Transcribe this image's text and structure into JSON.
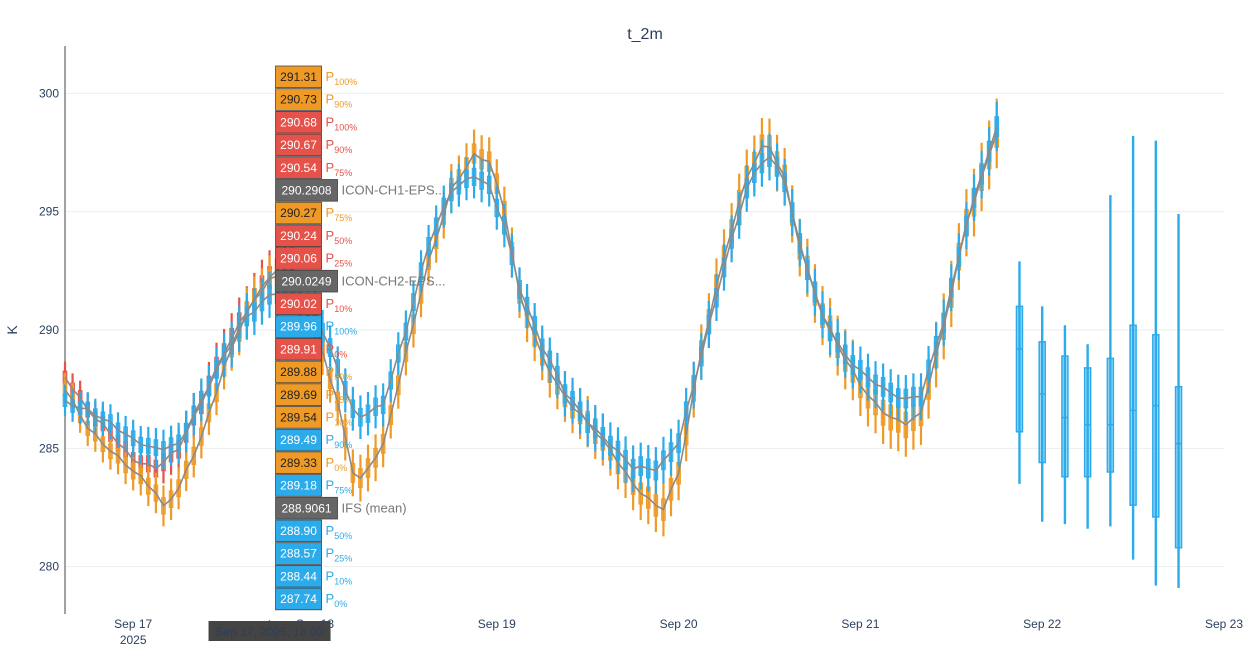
{
  "chart_data": {
    "type": "box",
    "title": "t_2m",
    "ylabel": "K",
    "xlabel": "",
    "ylim": [
      278,
      302
    ],
    "xlim": [
      "2025-09-16 15:00",
      "2025-09-23 00:00"
    ],
    "yticks": [
      280,
      285,
      290,
      295,
      300
    ],
    "xticks": [
      {
        "x": "2025-09-17 00:00",
        "label": "Sep 17",
        "sublabel": "2025"
      },
      {
        "x": "2025-09-18 00:00",
        "label": "Sep 18",
        "sublabel": ""
      },
      {
        "x": "2025-09-19 00:00",
        "label": "Sep 19",
        "sublabel": ""
      },
      {
        "x": "2025-09-20 00:00",
        "label": "Sep 20",
        "sublabel": ""
      },
      {
        "x": "2025-09-21 00:00",
        "label": "Sep 21",
        "sublabel": ""
      },
      {
        "x": "2025-09-22 00:00",
        "label": "Sep 22",
        "sublabel": ""
      },
      {
        "x": "2025-09-23 00:00",
        "label": "Sep 23",
        "sublabel": ""
      }
    ],
    "grid": true,
    "series": [
      {
        "name": "ICON-CH1-EPS",
        "color": "#e5524a",
        "kind": "box",
        "x_start": "2025-09-16 15:00",
        "x_end": "2025-09-17 21:00",
        "step_hours": 1,
        "median": [
          [
            0,
            288.0
          ],
          [
            3,
            286.5
          ],
          [
            9,
            284.6
          ],
          [
            12,
            284.3
          ],
          [
            15,
            285.0
          ],
          [
            18,
            286.8
          ],
          [
            21,
            289.0
          ],
          [
            24,
            290.9
          ],
          [
            27,
            292.4
          ],
          [
            29,
            292.8
          ],
          [
            30,
            292.6
          ],
          [
            31,
            291.8
          ],
          [
            33,
            290.3
          ],
          [
            36,
            286.4
          ]
        ],
        "spread": [
          [
            0,
            1.2
          ],
          [
            12,
            1.6
          ],
          [
            24,
            2.0
          ],
          [
            30,
            2.2
          ],
          [
            36,
            2.2
          ]
        ]
      },
      {
        "name": "ICON-CH2-EPS",
        "color": "#ef9a26",
        "kind": "box",
        "x_start": "2025-09-16 15:00",
        "x_end": "2025-09-21 18:00",
        "step_hours": 1,
        "median": [
          [
            0,
            287.5
          ],
          [
            3,
            286.0
          ],
          [
            9,
            284.0
          ],
          [
            12,
            283.0
          ],
          [
            13,
            282.4
          ],
          [
            15,
            283.3
          ],
          [
            18,
            285.6
          ],
          [
            21,
            288.5
          ],
          [
            24,
            290.7
          ],
          [
            27,
            292.0
          ],
          [
            29,
            292.3
          ],
          [
            30,
            292.1
          ],
          [
            33,
            290.3
          ],
          [
            36,
            287.0
          ],
          [
            38,
            284.0
          ],
          [
            39,
            283.6
          ],
          [
            42,
            285.0
          ],
          [
            45,
            289.0
          ],
          [
            48,
            293.0
          ],
          [
            51,
            296.0
          ],
          [
            54,
            297.3
          ],
          [
            56,
            297.0
          ],
          [
            58,
            295.0
          ],
          [
            60,
            291.5
          ],
          [
            63,
            289.0
          ],
          [
            66,
            287.2
          ],
          [
            69,
            286.0
          ],
          [
            72,
            284.8
          ],
          [
            75,
            283.5
          ],
          [
            78,
            282.7
          ],
          [
            79,
            282.6
          ],
          [
            81,
            284.0
          ],
          [
            84,
            289.0
          ],
          [
            87,
            293.0
          ],
          [
            90,
            296.5
          ],
          [
            92,
            297.8
          ],
          [
            93,
            297.9
          ],
          [
            95,
            296.5
          ],
          [
            97,
            293.5
          ],
          [
            100,
            290.5
          ],
          [
            103,
            288.7
          ],
          [
            106,
            287.3
          ],
          [
            109,
            286.4
          ],
          [
            111,
            286.1
          ],
          [
            113,
            286.4
          ],
          [
            116,
            290.0
          ],
          [
            119,
            294.5
          ],
          [
            122,
            297.5
          ],
          [
            124,
            299.5
          ],
          [
            126,
            300.2
          ],
          [
            128,
            299.0
          ],
          [
            130,
            296.5
          ],
          [
            132,
            293.5
          ],
          [
            135,
            291.0
          ],
          [
            138,
            289.0
          ],
          [
            141,
            287.8
          ],
          [
            144,
            287.0
          ],
          [
            147,
            286.8
          ],
          [
            149,
            288.0
          ],
          [
            152,
            292.0
          ],
          [
            155,
            295.5
          ],
          [
            157,
            297.0
          ],
          [
            159,
            297.5
          ],
          [
            161,
            296.5
          ],
          [
            162,
            295.0
          ],
          [
            163,
            293.0
          ],
          [
            164,
            292.5
          ],
          [
            165,
            292.0
          ]
        ],
        "spread": [
          [
            0,
            1.3
          ],
          [
            24,
            1.8
          ],
          [
            48,
            1.8
          ],
          [
            72,
            2.0
          ],
          [
            96,
            2.2
          ],
          [
            120,
            2.6
          ],
          [
            144,
            3.2
          ],
          [
            156,
            7.0
          ],
          [
            165,
            7.5
          ]
        ]
      },
      {
        "name": "ICON-CH1-EPS",
        "color": "#2cabeb",
        "kind": "box",
        "x_start": "2025-09-16 15:00",
        "x_end": "2025-09-21 18:00",
        "step_hours": 1,
        "median": [
          [
            0,
            287.0
          ],
          [
            3,
            286.5
          ],
          [
            9,
            285.4
          ],
          [
            12,
            285.1
          ],
          [
            15,
            285.2
          ],
          [
            18,
            286.9
          ],
          [
            21,
            288.8
          ],
          [
            24,
            290.6
          ],
          [
            27,
            291.6
          ],
          [
            29,
            291.8
          ],
          [
            30,
            291.7
          ],
          [
            33,
            290.6
          ],
          [
            36,
            288.3
          ],
          [
            38,
            286.6
          ],
          [
            39,
            286.4
          ],
          [
            42,
            287.0
          ],
          [
            45,
            290.0
          ],
          [
            48,
            293.5
          ],
          [
            51,
            295.8
          ],
          [
            54,
            296.6
          ],
          [
            56,
            296.2
          ],
          [
            58,
            294.5
          ],
          [
            60,
            291.8
          ],
          [
            63,
            289.2
          ],
          [
            66,
            287.3
          ],
          [
            69,
            286.2
          ],
          [
            72,
            285.3
          ],
          [
            75,
            284.2
          ],
          [
            78,
            284.0
          ],
          [
            79,
            284.3
          ],
          [
            81,
            285.2
          ],
          [
            84,
            289.0
          ],
          [
            87,
            292.8
          ],
          [
            90,
            296.0
          ],
          [
            92,
            297.0
          ],
          [
            93,
            297.2
          ],
          [
            95,
            296.2
          ],
          [
            97,
            293.6
          ],
          [
            100,
            290.7
          ],
          [
            103,
            289.0
          ],
          [
            106,
            287.9
          ],
          [
            109,
            287.2
          ],
          [
            111,
            287.0
          ],
          [
            113,
            287.3
          ],
          [
            116,
            290.5
          ],
          [
            119,
            294.5
          ],
          [
            122,
            297.5
          ],
          [
            124,
            299.3
          ],
          [
            126,
            299.6
          ],
          [
            128,
            298.8
          ],
          [
            130,
            296.3
          ],
          [
            132,
            293.6
          ],
          [
            135,
            291.5
          ],
          [
            138,
            290.3
          ],
          [
            141,
            289.7
          ],
          [
            144,
            289.6
          ],
          [
            147,
            289.6
          ],
          [
            149,
            290.0
          ],
          [
            152,
            292.2
          ],
          [
            155,
            294.0
          ],
          [
            157,
            295.0
          ],
          [
            159,
            295.2
          ],
          [
            161,
            294.5
          ],
          [
            163,
            293.2
          ],
          [
            165,
            291.5
          ]
        ],
        "spread": [
          [
            0,
            1.2
          ],
          [
            24,
            1.8
          ],
          [
            48,
            1.6
          ],
          [
            72,
            1.8
          ],
          [
            96,
            1.8
          ],
          [
            120,
            1.8
          ],
          [
            144,
            2.6
          ],
          [
            156,
            4.5
          ],
          [
            165,
            6.0
          ]
        ]
      },
      {
        "name": "IFS",
        "color": "#2cabeb",
        "kind": "box-sparse",
        "boxes": [
          {
            "x": "2025-09-21 21:00",
            "low": 283.5,
            "q1": 285.7,
            "median": 289.2,
            "q3": 291.0,
            "high": 292.9
          },
          {
            "x": "2025-09-22 00:00",
            "low": 281.9,
            "q1": 284.4,
            "median": 287.3,
            "q3": 289.5,
            "high": 291.0
          },
          {
            "x": "2025-09-22 03:00",
            "low": 281.8,
            "q1": 283.8,
            "median": 286.3,
            "q3": 288.9,
            "high": 290.2
          },
          {
            "x": "2025-09-22 06:00",
            "low": 281.6,
            "q1": 283.8,
            "median": 286.0,
            "q3": 288.4,
            "high": 289.4
          },
          {
            "x": "2025-09-22 09:00",
            "low": 281.7,
            "q1": 284.0,
            "median": 286.0,
            "q3": 288.8,
            "high": 295.7
          },
          {
            "x": "2025-09-22 12:00",
            "low": 280.3,
            "q1": 282.6,
            "median": 286.6,
            "q3": 290.2,
            "high": 298.2
          },
          {
            "x": "2025-09-22 15:00",
            "low": 279.2,
            "q1": 282.1,
            "median": 286.8,
            "q3": 289.8,
            "high": 298.0
          },
          {
            "x": "2025-09-22 18:00",
            "low": 279.1,
            "q1": 280.8,
            "median": 285.2,
            "q3": 287.6,
            "high": 294.9
          }
        ]
      },
      {
        "name": "ICON-CH1-EPS (mean)",
        "color": "#8a8a8a",
        "kind": "line",
        "line_of": 0
      },
      {
        "name": "ICON-CH2-EPS (mean)",
        "color": "#8a8a8a",
        "kind": "line",
        "line_of": 1
      },
      {
        "name": "IFS (mean)",
        "color": "#8a8a8a",
        "kind": "line",
        "line_of": 2
      }
    ],
    "hover": {
      "x": "2025-09-17 18:00",
      "x_label": "Sep 17, 2025, 18:00",
      "items": [
        {
          "value": "291.31",
          "name": "P",
          "sub": "100%",
          "color": "#ef9a26"
        },
        {
          "value": "290.73",
          "name": "P",
          "sub": "90%",
          "color": "#ef9a26"
        },
        {
          "value": "290.68",
          "name": "P",
          "sub": "100%",
          "color": "#e5524a"
        },
        {
          "value": "290.67",
          "name": "P",
          "sub": "90%",
          "color": "#e5524a"
        },
        {
          "value": "290.54",
          "name": "P",
          "sub": "75%",
          "color": "#e5524a"
        },
        {
          "value": "290.2908",
          "name": "ICON-CH1-EPS...",
          "sub": "",
          "color": "#666666"
        },
        {
          "value": "290.27",
          "name": "P",
          "sub": "75%",
          "color": "#ef9a26"
        },
        {
          "value": "290.24",
          "name": "P",
          "sub": "50%",
          "color": "#e5524a"
        },
        {
          "value": "290.06",
          "name": "P",
          "sub": "25%",
          "color": "#e5524a"
        },
        {
          "value": "290.0249",
          "name": "ICON-CH2-EPS...",
          "sub": "",
          "color": "#666666"
        },
        {
          "value": "290.02",
          "name": "P",
          "sub": "10%",
          "color": "#e5524a"
        },
        {
          "value": "289.96",
          "name": "P",
          "sub": "100%",
          "color": "#2cabeb"
        },
        {
          "value": "289.91",
          "name": "P",
          "sub": "0%",
          "color": "#e5524a"
        },
        {
          "value": "289.88",
          "name": "P",
          "sub": "50%",
          "color": "#ef9a26"
        },
        {
          "value": "289.69",
          "name": "P",
          "sub": "25%",
          "color": "#ef9a26"
        },
        {
          "value": "289.54",
          "name": "P",
          "sub": "10%",
          "color": "#ef9a26"
        },
        {
          "value": "289.49",
          "name": "P",
          "sub": "90%",
          "color": "#2cabeb"
        },
        {
          "value": "289.33",
          "name": "P",
          "sub": "0%",
          "color": "#ef9a26"
        },
        {
          "value": "289.18",
          "name": "P",
          "sub": "75%",
          "color": "#2cabeb"
        },
        {
          "value": "288.9061",
          "name": "IFS (mean)",
          "sub": "",
          "color": "#666666"
        },
        {
          "value": "288.90",
          "name": "P",
          "sub": "50%",
          "color": "#2cabeb"
        },
        {
          "value": "288.57",
          "name": "P",
          "sub": "25%",
          "color": "#2cabeb"
        },
        {
          "value": "288.44",
          "name": "P",
          "sub": "10%",
          "color": "#2cabeb"
        },
        {
          "value": "287.74",
          "name": "P",
          "sub": "0%",
          "color": "#2cabeb"
        }
      ]
    }
  }
}
